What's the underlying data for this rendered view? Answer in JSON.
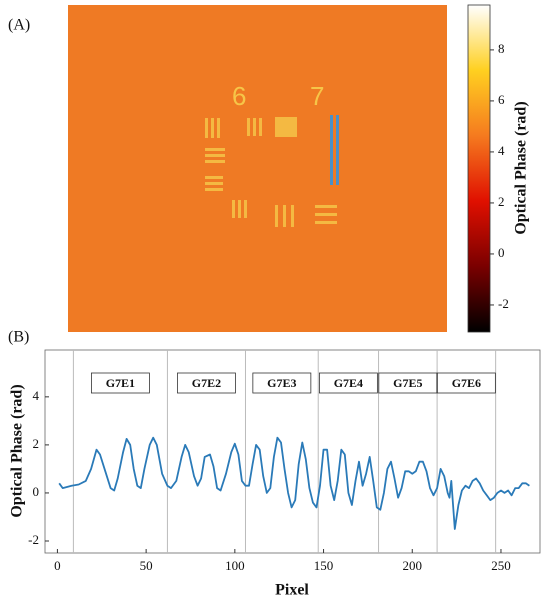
{
  "chart_data": [
    {
      "type": "image",
      "label": "(A)",
      "image_labels": [
        "6",
        "7"
      ],
      "colorbar": {
        "label": "Optical Phase (rad)",
        "lim": [
          -3.06,
          9.76
        ],
        "ticks": [
          -2,
          0,
          2,
          4,
          6,
          8
        ],
        "colors": [
          "#000000",
          "#7a0000",
          "#e01000",
          "#f57a1f",
          "#ffd020",
          "#ffffff"
        ]
      },
      "background": "#ef7a24"
    },
    {
      "type": "line",
      "label": "(B)",
      "xlabel": "Pixel",
      "ylabel": "Optical Phase (rad)",
      "xlim": [
        -7,
        272
      ],
      "xticks": [
        0,
        50,
        100,
        150,
        200,
        250
      ],
      "ylim": [
        -2.5,
        5.95
      ],
      "yticks": [
        -2,
        0,
        2,
        4
      ],
      "vlines": [
        9,
        62,
        106,
        147,
        181,
        214,
        247
      ],
      "segment_labels": [
        "G7E1",
        "G7E2",
        "G7E3",
        "G7E4",
        "G7E5",
        "G7E6"
      ],
      "series": [
        {
          "color": "#2a7ab8",
          "x": [
            1,
            3,
            8,
            12,
            16,
            19,
            22,
            24,
            27,
            30,
            32,
            34,
            37,
            39,
            41,
            43,
            45,
            47,
            49,
            52,
            54,
            56,
            59,
            62,
            64,
            67,
            70,
            72,
            74,
            77,
            79,
            81,
            83,
            86,
            88,
            90,
            92,
            95,
            98,
            100,
            102,
            104,
            106,
            108,
            110,
            112,
            114,
            116,
            118,
            120,
            122,
            124,
            126,
            128,
            130,
            132,
            134,
            136,
            138,
            140,
            142,
            144,
            146,
            148,
            150,
            152,
            154,
            156,
            158,
            160,
            162,
            164,
            166,
            168,
            170,
            172,
            174,
            176,
            178,
            180,
            182,
            184,
            186,
            188,
            190,
            192,
            194,
            196,
            198,
            200,
            202,
            204,
            206,
            208,
            210,
            212,
            214,
            216,
            218,
            220,
            221,
            222,
            224,
            226,
            228,
            230,
            232,
            234,
            236,
            238,
            240,
            242,
            244,
            246,
            248,
            250,
            252,
            254,
            256,
            258,
            260,
            262,
            264,
            266
          ],
          "values": [
            0.4,
            0.2,
            0.3,
            0.35,
            0.5,
            1.0,
            1.8,
            1.6,
            0.9,
            0.2,
            0.1,
            0.6,
            1.7,
            2.25,
            2.0,
            1.0,
            0.3,
            0.2,
            1.0,
            2.0,
            2.3,
            2.0,
            0.8,
            0.3,
            0.2,
            0.5,
            1.5,
            2.0,
            1.7,
            0.7,
            0.3,
            0.6,
            1.5,
            1.6,
            1.1,
            0.2,
            0.1,
            0.8,
            1.7,
            2.05,
            1.6,
            0.5,
            0.3,
            0.3,
            1.2,
            2.0,
            1.8,
            0.7,
            0.0,
            0.2,
            1.5,
            2.3,
            2.1,
            1.0,
            0.0,
            -0.6,
            -0.3,
            1.2,
            2.1,
            1.4,
            0.2,
            -0.4,
            -0.6,
            0.3,
            1.8,
            1.8,
            0.3,
            -0.3,
            0.5,
            1.8,
            1.6,
            0.0,
            -0.5,
            0.5,
            1.3,
            0.3,
            0.8,
            1.5,
            0.5,
            -0.6,
            -0.7,
            0.0,
            1.0,
            1.3,
            0.6,
            -0.2,
            0.2,
            0.9,
            0.9,
            0.8,
            0.9,
            1.3,
            1.3,
            0.9,
            0.2,
            -0.1,
            0.2,
            1.0,
            0.7,
            0.0,
            -0.2,
            0.5,
            -1.5,
            -0.5,
            0.1,
            0.3,
            0.2,
            0.5,
            0.6,
            0.4,
            0.1,
            -0.1,
            -0.3,
            -0.2,
            0.0,
            0.1,
            0.0,
            0.1,
            -0.1,
            0.2,
            0.2,
            0.4,
            0.4,
            0.3
          ]
        }
      ]
    }
  ]
}
